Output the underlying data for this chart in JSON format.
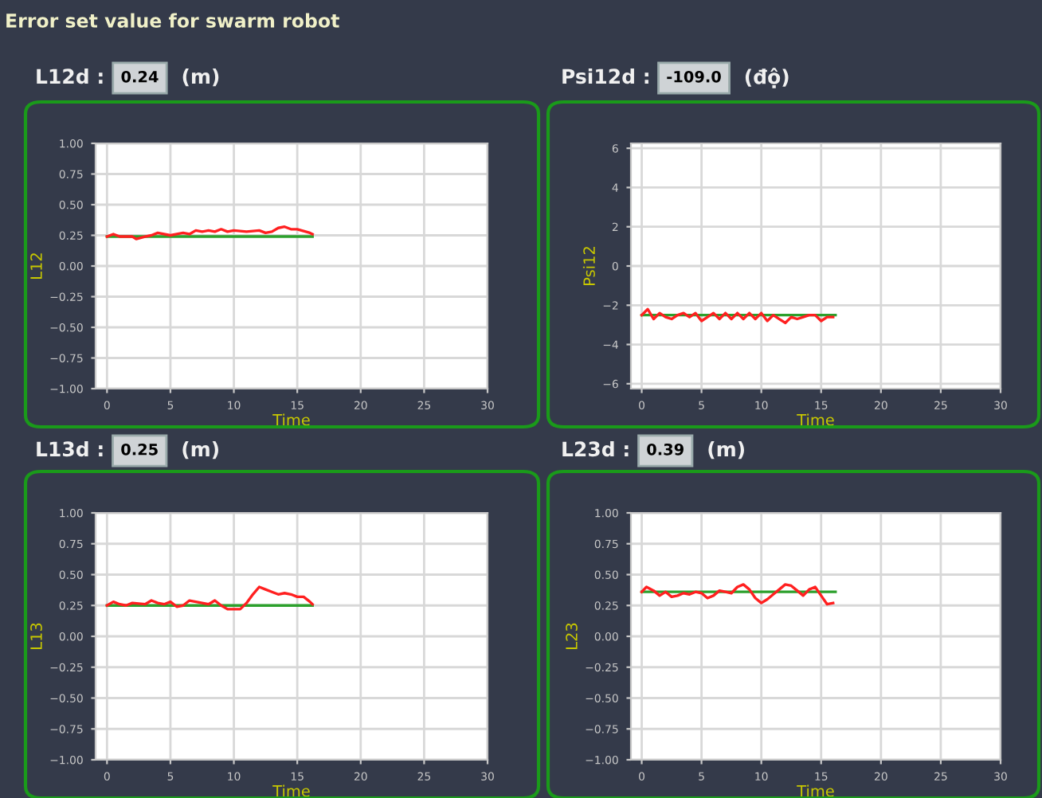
{
  "chart_data": [
    {
      "type": "line",
      "title": "Error set value for swarm robot",
      "annotations": [
        "L12d :",
        "0.24",
        "(m)"
      ],
      "xlabel": "Time",
      "ylabel": "L12",
      "xlim": [
        -0.9,
        30
      ],
      "xticks": [
        0,
        5,
        10,
        15,
        20,
        25,
        30
      ],
      "ylim": [
        -1,
        1
      ],
      "yticks": [
        {
          "value": -1,
          "label": "−1.00"
        },
        {
          "value": -0.75,
          "label": "−0.75"
        },
        {
          "value": -0.5,
          "label": "−0.50"
        },
        {
          "value": -0.25,
          "label": "−0.25"
        },
        {
          "value": 0,
          "label": "0.00"
        },
        {
          "value": 0.25,
          "label": "0.25"
        },
        {
          "value": 0.5,
          "label": "0.50"
        },
        {
          "value": 0.75,
          "label": "0.75"
        },
        {
          "value": 1,
          "label": "1.00"
        }
      ],
      "grid": true,
      "series": [
        {
          "color": "#2ca02c",
          "x": [
            0,
            16.2
          ],
          "values": [
            0.24,
            0.24
          ]
        },
        {
          "color": "#ff2020",
          "x": [
            0,
            0.5,
            1,
            2,
            2.3,
            3,
            3.5,
            4,
            5,
            5.5,
            6,
            6.5,
            7,
            7.5,
            8,
            8.5,
            9,
            9.5,
            10,
            11,
            12,
            12.5,
            13,
            13.5,
            14,
            14.5,
            15,
            16,
            16.2
          ],
          "values": [
            0.24,
            0.26,
            0.24,
            0.24,
            0.22,
            0.24,
            0.25,
            0.27,
            0.25,
            0.26,
            0.27,
            0.26,
            0.29,
            0.28,
            0.29,
            0.28,
            0.3,
            0.28,
            0.29,
            0.28,
            0.29,
            0.27,
            0.28,
            0.31,
            0.32,
            0.3,
            0.3,
            0.27,
            0.26
          ]
        }
      ]
    },
    {
      "type": "line",
      "annotations": [
        "Psi12d :",
        "-109.0",
        "(độ)"
      ],
      "xlabel": "Time",
      "ylabel": "Psi12",
      "xlim": [
        -0.9,
        30
      ],
      "xticks": [
        0,
        5,
        10,
        15,
        20,
        25,
        30
      ],
      "ylim": [
        -6.25,
        6.25
      ],
      "yticks": [
        {
          "value": -6,
          "label": "−6"
        },
        {
          "value": -4,
          "label": "−4"
        },
        {
          "value": -2,
          "label": "−2"
        },
        0,
        2,
        4,
        6
      ],
      "grid": true,
      "series": [
        {
          "color": "#2ca02c",
          "x": [
            0,
            16.2
          ],
          "values": [
            -2.5,
            -2.5
          ]
        },
        {
          "color": "#ff2020",
          "x": [
            0,
            0.5,
            1,
            1.5,
            2,
            2.5,
            3,
            3.5,
            4,
            4.5,
            5,
            5.5,
            6,
            6.5,
            7,
            7.5,
            8,
            8.5,
            9,
            9.5,
            10,
            10.5,
            11,
            11.5,
            12,
            12.5,
            13,
            13.5,
            14,
            14.5,
            15,
            15.5,
            16
          ],
          "values": [
            -2.5,
            -2.2,
            -2.7,
            -2.4,
            -2.6,
            -2.7,
            -2.5,
            -2.4,
            -2.6,
            -2.4,
            -2.8,
            -2.6,
            -2.4,
            -2.7,
            -2.4,
            -2.7,
            -2.4,
            -2.7,
            -2.4,
            -2.7,
            -2.4,
            -2.8,
            -2.5,
            -2.7,
            -2.9,
            -2.6,
            -2.7,
            -2.6,
            -2.5,
            -2.5,
            -2.8,
            -2.6,
            -2.6
          ]
        }
      ]
    },
    {
      "type": "line",
      "annotations": [
        "L13d :",
        "0.25",
        "(m)"
      ],
      "xlabel": "Time",
      "ylabel": "L13",
      "xlim": [
        -0.9,
        30
      ],
      "xticks": [
        0,
        5,
        10,
        15,
        20,
        25,
        30
      ],
      "ylim": [
        -1,
        1
      ],
      "yticks": [
        {
          "value": -1,
          "label": "−1.00"
        },
        {
          "value": -0.75,
          "label": "−0.75"
        },
        {
          "value": -0.5,
          "label": "−0.50"
        },
        {
          "value": -0.25,
          "label": "−0.25"
        },
        {
          "value": 0,
          "label": "0.00"
        },
        {
          "value": 0.25,
          "label": "0.25"
        },
        {
          "value": 0.5,
          "label": "0.50"
        },
        {
          "value": 0.75,
          "label": "0.75"
        },
        {
          "value": 1,
          "label": "1.00"
        }
      ],
      "grid": true,
      "series": [
        {
          "color": "#2ca02c",
          "x": [
            0,
            16.2
          ],
          "values": [
            0.25,
            0.25
          ]
        },
        {
          "color": "#ff2020",
          "x": [
            0,
            0.5,
            1,
            1.5,
            2,
            3,
            3.5,
            4,
            4.5,
            5,
            5.5,
            6,
            6.5,
            7,
            7.5,
            8,
            8.5,
            9,
            9.5,
            10,
            10.5,
            11,
            11.5,
            12,
            12.5,
            13,
            13.5,
            14,
            14.5,
            15,
            15.5,
            16,
            16.2
          ],
          "values": [
            0.25,
            0.28,
            0.26,
            0.25,
            0.27,
            0.26,
            0.29,
            0.27,
            0.26,
            0.28,
            0.24,
            0.25,
            0.29,
            0.28,
            0.27,
            0.26,
            0.29,
            0.25,
            0.22,
            0.22,
            0.22,
            0.27,
            0.34,
            0.4,
            0.38,
            0.36,
            0.34,
            0.35,
            0.34,
            0.32,
            0.32,
            0.28,
            0.26
          ]
        }
      ]
    },
    {
      "type": "line",
      "annotations": [
        "L23d :",
        "0.39",
        "(m)"
      ],
      "xlabel": "Time",
      "ylabel": "L23",
      "xlim": [
        -0.9,
        30
      ],
      "xticks": [
        0,
        5,
        10,
        15,
        20,
        25,
        30
      ],
      "ylim": [
        -1,
        1
      ],
      "yticks": [
        {
          "value": -1,
          "label": "−1.00"
        },
        {
          "value": -0.75,
          "label": "−0.75"
        },
        {
          "value": -0.5,
          "label": "−0.50"
        },
        {
          "value": -0.25,
          "label": "−0.25"
        },
        {
          "value": 0,
          "label": "0.00"
        },
        {
          "value": 0.25,
          "label": "0.25"
        },
        {
          "value": 0.5,
          "label": "0.50"
        },
        {
          "value": 0.75,
          "label": "0.75"
        },
        {
          "value": 1,
          "label": "1.00"
        }
      ],
      "grid": true,
      "series": [
        {
          "color": "#2ca02c",
          "x": [
            0,
            16.2
          ],
          "values": [
            0.36,
            0.36
          ]
        },
        {
          "color": "#ff2020",
          "x": [
            0,
            0.4,
            1,
            1.5,
            2,
            2.5,
            3,
            3.5,
            4,
            4.5,
            5,
            5.5,
            6,
            6.5,
            7,
            7.5,
            8,
            8.5,
            9,
            9.5,
            10,
            10.5,
            11,
            11.5,
            12,
            12.5,
            13,
            13.5,
            14,
            14.5,
            15,
            15.5,
            16
          ],
          "values": [
            0.36,
            0.4,
            0.37,
            0.33,
            0.36,
            0.32,
            0.33,
            0.35,
            0.34,
            0.36,
            0.35,
            0.31,
            0.33,
            0.37,
            0.36,
            0.35,
            0.4,
            0.42,
            0.38,
            0.31,
            0.27,
            0.3,
            0.34,
            0.38,
            0.42,
            0.41,
            0.37,
            0.33,
            0.38,
            0.4,
            0.33,
            0.26,
            0.27
          ]
        }
      ]
    }
  ]
}
